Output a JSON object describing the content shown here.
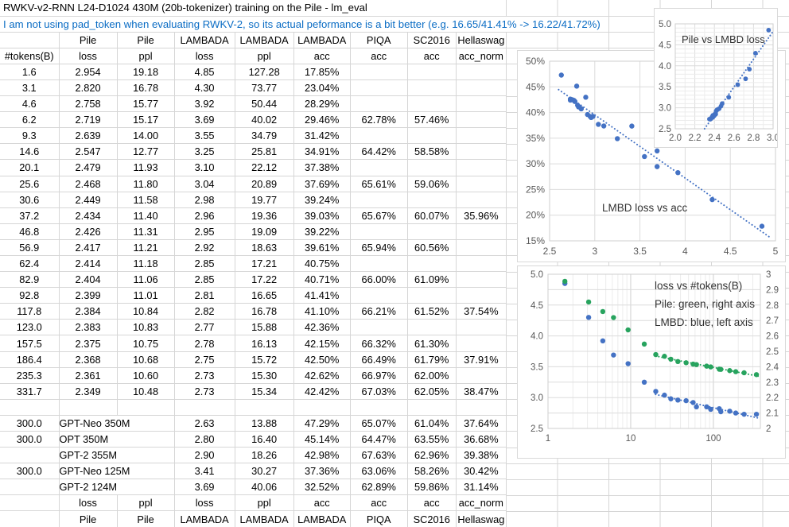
{
  "sheet": {
    "title": "RWKV-v2-RNN L24-D1024 430M (20b-tokenizer) training on the Pile - lm_eval",
    "subtitle": "I am not using pad_token when evaluating RWKV-2, so its actual peformance is a bit better (e.g. 16.65/41.41% -> 16.22/41.72%)",
    "group_header": [
      "",
      "Pile",
      "Pile",
      "LAMBADA",
      "LAMBADA",
      "LAMBADA",
      "PIQA",
      "SC2016",
      "Hellaswag"
    ],
    "metric_header": [
      "#tokens(B)",
      "loss",
      "ppl",
      "loss",
      "ppl",
      "acc",
      "acc",
      "acc",
      "acc_norm"
    ],
    "rwkv_rows": [
      [
        "1.6",
        "2.954",
        "19.18",
        "4.85",
        "127.28",
        "17.85%",
        "",
        "",
        ""
      ],
      [
        "3.1",
        "2.820",
        "16.78",
        "4.30",
        "73.77",
        "23.04%",
        "",
        "",
        ""
      ],
      [
        "4.6",
        "2.758",
        "15.77",
        "3.92",
        "50.44",
        "28.29%",
        "",
        "",
        ""
      ],
      [
        "6.2",
        "2.719",
        "15.17",
        "3.69",
        "40.02",
        "29.46%",
        "62.78%",
        "57.46%",
        ""
      ],
      [
        "9.3",
        "2.639",
        "14.00",
        "3.55",
        "34.79",
        "31.42%",
        "",
        "",
        ""
      ],
      [
        "14.6",
        "2.547",
        "12.77",
        "3.25",
        "25.81",
        "34.91%",
        "64.42%",
        "58.58%",
        ""
      ],
      [
        "20.1",
        "2.479",
        "11.93",
        "3.10",
        "22.12",
        "37.38%",
        "",
        "",
        ""
      ],
      [
        "25.6",
        "2.468",
        "11.80",
        "3.04",
        "20.89",
        "37.69%",
        "65.61%",
        "59.06%",
        ""
      ],
      [
        "30.6",
        "2.449",
        "11.58",
        "2.98",
        "19.77",
        "39.24%",
        "",
        "",
        ""
      ],
      [
        "37.2",
        "2.434",
        "11.40",
        "2.96",
        "19.36",
        "39.03%",
        "65.67%",
        "60.07%",
        "35.96%"
      ],
      [
        "46.8",
        "2.426",
        "11.31",
        "2.95",
        "19.09",
        "39.22%",
        "",
        "",
        ""
      ],
      [
        "56.9",
        "2.417",
        "11.21",
        "2.92",
        "18.63",
        "39.61%",
        "65.94%",
        "60.56%",
        ""
      ],
      [
        "62.4",
        "2.414",
        "11.18",
        "2.85",
        "17.21",
        "40.75%",
        "",
        "",
        ""
      ],
      [
        "82.9",
        "2.404",
        "11.06",
        "2.85",
        "17.22",
        "40.71%",
        "66.00%",
        "61.09%",
        ""
      ],
      [
        "92.8",
        "2.399",
        "11.01",
        "2.81",
        "16.65",
        "41.41%",
        "",
        "",
        ""
      ],
      [
        "117.8",
        "2.384",
        "10.84",
        "2.82",
        "16.78",
        "41.10%",
        "66.21%",
        "61.52%",
        "37.54%"
      ],
      [
        "123.0",
        "2.383",
        "10.83",
        "2.77",
        "15.88",
        "42.36%",
        "",
        "",
        ""
      ],
      [
        "157.5",
        "2.375",
        "10.75",
        "2.78",
        "16.13",
        "42.15%",
        "66.32%",
        "61.30%",
        ""
      ],
      [
        "186.4",
        "2.368",
        "10.68",
        "2.75",
        "15.72",
        "42.50%",
        "66.49%",
        "61.79%",
        "37.91%"
      ],
      [
        "235.3",
        "2.361",
        "10.60",
        "2.73",
        "15.30",
        "42.62%",
        "66.97%",
        "62.00%",
        ""
      ],
      [
        "331.7",
        "2.349",
        "10.48",
        "2.73",
        "15.34",
        "42.42%",
        "67.03%",
        "62.05%",
        "38.47%"
      ]
    ],
    "baseline_rows": [
      [
        "300.0",
        "GPT-Neo 350M",
        "2.63",
        "13.88",
        "47.29%",
        "65.07%",
        "61.04%",
        "37.64%"
      ],
      [
        "300.0",
        "OPT 350M",
        "2.80",
        "16.40",
        "45.14%",
        "64.47%",
        "63.55%",
        "36.68%"
      ],
      [
        "",
        "GPT-2 355M",
        "2.90",
        "18.26",
        "42.98%",
        "67.63%",
        "62.96%",
        "39.38%"
      ],
      [
        "300.0",
        "GPT-Neo 125M",
        "3.41",
        "30.27",
        "37.36%",
        "63.06%",
        "58.26%",
        "30.42%"
      ],
      [
        "",
        "GPT-2 124M",
        "3.69",
        "40.06",
        "32.52%",
        "62.89%",
        "59.86%",
        "31.14%"
      ]
    ],
    "footer_metric": [
      "",
      "loss",
      "ppl",
      "loss",
      "ppl",
      "acc",
      "acc",
      "acc",
      "acc_norm"
    ],
    "footer_group": [
      "",
      "Pile",
      "Pile",
      "LAMBADA",
      "LAMBADA",
      "LAMBADA",
      "PIQA",
      "SC2016",
      "Hellaswag"
    ]
  },
  "colors": {
    "point_blue": "#4472C4",
    "point_green": "#27A35E",
    "subtitle_blue": "#0A6CC4",
    "sheet_grid": "#D6D6D6",
    "chart_grid_major": "#DCDCDC",
    "chart_grid_minor": "#ECECEC",
    "axis_text": "#595959",
    "chart_label_text": "#333333"
  },
  "chart_data": [
    {
      "id": "pile-vs-lmbd-loss",
      "type": "scatter",
      "title": "Pile vs LMBD loss",
      "xlim": [
        2.0,
        3.0
      ],
      "ylim": [
        2.5,
        5.0
      ],
      "xticks": [
        "2.0",
        "2.2",
        "2.4",
        "2.6",
        "2.8",
        "3.0"
      ],
      "yticks": [
        "2.5",
        "3.0",
        "3.5",
        "4.0",
        "4.5",
        "5.0"
      ],
      "grid": true,
      "legend": "none",
      "trendline": "linear-dotted",
      "x": [
        2.954,
        2.82,
        2.758,
        2.719,
        2.639,
        2.547,
        2.479,
        2.468,
        2.449,
        2.434,
        2.426,
        2.417,
        2.414,
        2.404,
        2.399,
        2.384,
        2.383,
        2.375,
        2.368,
        2.361,
        2.349
      ],
      "y": [
        4.85,
        4.3,
        3.92,
        3.69,
        3.55,
        3.25,
        3.1,
        3.04,
        2.98,
        2.96,
        2.95,
        2.92,
        2.85,
        2.85,
        2.81,
        2.82,
        2.77,
        2.78,
        2.75,
        2.73,
        2.73
      ]
    },
    {
      "id": "lmbd-loss-vs-acc",
      "type": "scatter",
      "title": "LMBD loss vs acc",
      "xlim": [
        2.5,
        5.0
      ],
      "ylim": [
        0.15,
        0.5
      ],
      "xticks": [
        "2.5",
        "3",
        "3.5",
        "4",
        "4.5",
        "5"
      ],
      "yticks": [
        "15%",
        "20%",
        "25%",
        "30%",
        "35%",
        "40%",
        "45%",
        "50%"
      ],
      "grid": true,
      "legend": "none",
      "trendline": "linear-dotted",
      "x": [
        4.85,
        4.3,
        3.92,
        3.69,
        3.55,
        3.25,
        3.1,
        3.04,
        2.98,
        2.96,
        2.95,
        2.92,
        2.85,
        2.85,
        2.81,
        2.82,
        2.77,
        2.78,
        2.75,
        2.73,
        2.73,
        2.63,
        2.8,
        2.9,
        3.41,
        3.69
      ],
      "y": [
        0.1785,
        0.2304,
        0.2829,
        0.2946,
        0.3142,
        0.3491,
        0.3738,
        0.3769,
        0.3924,
        0.3903,
        0.3922,
        0.3961,
        0.4075,
        0.4071,
        0.4141,
        0.411,
        0.4236,
        0.4215,
        0.425,
        0.4262,
        0.4242,
        0.4729,
        0.4514,
        0.4298,
        0.3736,
        0.3252
      ]
    },
    {
      "id": "loss-vs-tokens",
      "type": "scatter",
      "x_scale": "log",
      "annotation": [
        "loss vs #tokens(B)",
        "Pile: green, right axis",
        "LMBD: blue, left axis"
      ],
      "xlim": [
        1,
        370
      ],
      "xticks": [
        "1",
        "10",
        "100"
      ],
      "left_axis": {
        "lim": [
          2.5,
          5.0
        ],
        "ticks": [
          "2.5",
          "3.0",
          "3.5",
          "4.0",
          "4.5",
          "5.0"
        ]
      },
      "right_axis": {
        "lim": [
          2,
          3
        ],
        "ticks": [
          "2",
          "2.1",
          "2.2",
          "2.3",
          "2.4",
          "2.5",
          "2.6",
          "2.7",
          "2.8",
          "2.9",
          "3"
        ]
      },
      "grid": true,
      "legend": "none",
      "trendline": "log-linear-dotted",
      "categories_x_tokens_B": [
        1.6,
        3.1,
        4.6,
        6.2,
        9.3,
        14.6,
        20.1,
        25.6,
        30.6,
        37.2,
        46.8,
        56.9,
        62.4,
        82.9,
        92.8,
        117.8,
        123.0,
        157.5,
        186.4,
        235.3,
        331.7
      ],
      "series": [
        {
          "name": "LMBD",
          "axis": "left",
          "color": "#4472C4",
          "values": [
            4.85,
            4.3,
            3.92,
            3.69,
            3.55,
            3.25,
            3.1,
            3.04,
            2.98,
            2.96,
            2.95,
            2.92,
            2.85,
            2.85,
            2.81,
            2.82,
            2.77,
            2.78,
            2.75,
            2.73,
            2.73
          ]
        },
        {
          "name": "Pile",
          "axis": "right",
          "color": "#27A35E",
          "values": [
            2.954,
            2.82,
            2.758,
            2.719,
            2.639,
            2.547,
            2.479,
            2.468,
            2.449,
            2.434,
            2.426,
            2.417,
            2.414,
            2.404,
            2.399,
            2.384,
            2.383,
            2.375,
            2.368,
            2.361,
            2.349
          ]
        }
      ]
    }
  ]
}
